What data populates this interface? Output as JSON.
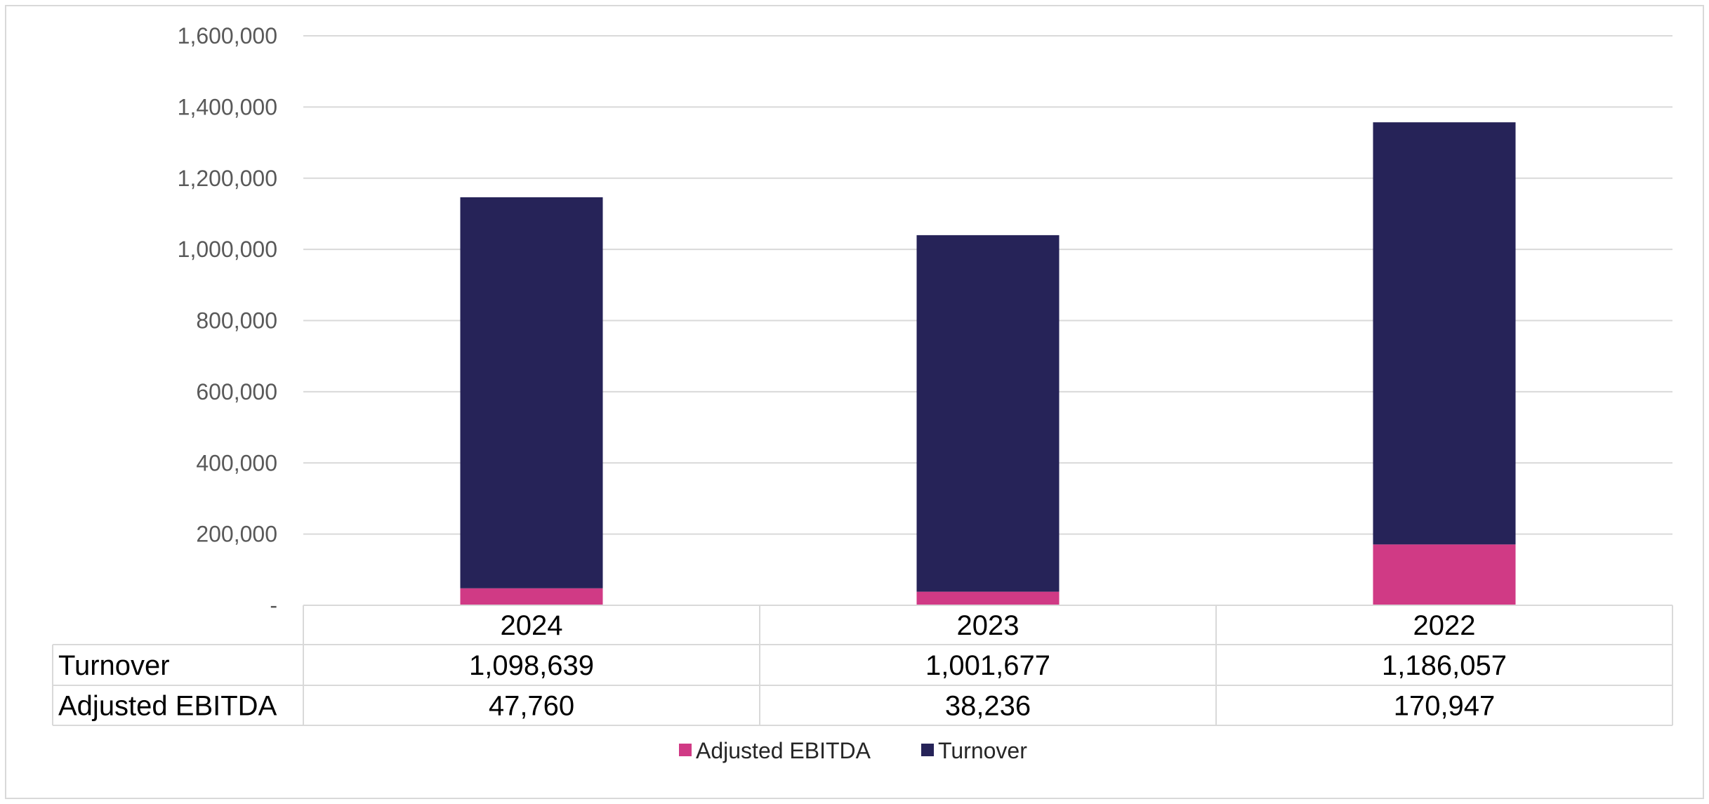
{
  "chart_data": {
    "type": "bar",
    "stacked": true,
    "categories": [
      "2024",
      "2023",
      "2022"
    ],
    "series": [
      {
        "name": "Adjusted EBITDA",
        "values": [
          47760,
          38236,
          170947
        ],
        "color": "#D03A85"
      },
      {
        "name": "Turnover",
        "values": [
          1098639,
          1001677,
          1186057
        ],
        "color": "#262358"
      }
    ],
    "ylim": [
      0,
      1600000
    ],
    "yticks": [
      0,
      200000,
      400000,
      600000,
      800000,
      1000000,
      1200000,
      1400000,
      1600000
    ],
    "ytick_labels": [
      "-",
      "200,000",
      "400,000",
      "600,000",
      "800,000",
      "1,000,000",
      "1,200,000",
      "1,400,000",
      "1,600,000"
    ],
    "grid": true,
    "legend": "bottom",
    "data_table": {
      "rows": [
        {
          "label": "Turnover",
          "cells": [
            "1,098,639",
            "1,001,677",
            "1,186,057"
          ]
        },
        {
          "label": "Adjusted EBITDA",
          "cells": [
            "47,760",
            "38,236",
            "170,947"
          ]
        }
      ]
    }
  }
}
